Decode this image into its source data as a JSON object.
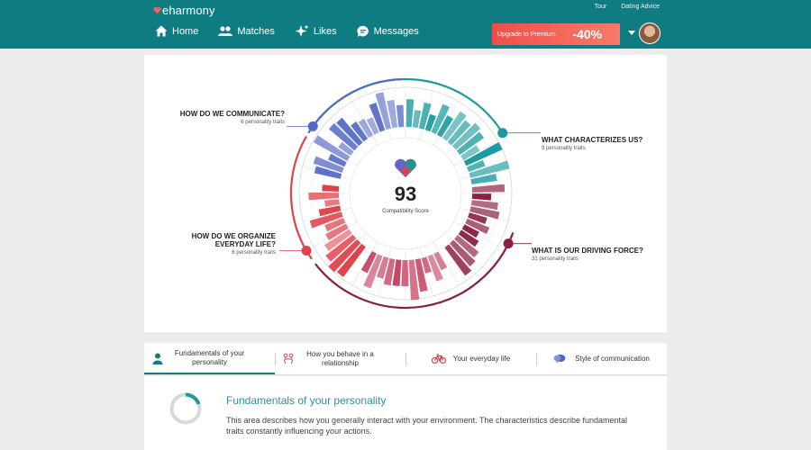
{
  "brand": {
    "logo_text": "eharmony"
  },
  "util_links": [
    "Tour",
    "Dating Advice"
  ],
  "nav": [
    {
      "label": "Home",
      "icon": "home-icon"
    },
    {
      "label": "Matches",
      "icon": "people-icon"
    },
    {
      "label": "Likes",
      "icon": "sparkle-icon"
    },
    {
      "label": "Messages",
      "icon": "chat-icon"
    }
  ],
  "upgrade": {
    "label": "Upgrade to Premium",
    "discount": "-40%"
  },
  "compatibility": {
    "score": "93",
    "score_label": "Compatibility Score",
    "sections": [
      {
        "title": "HOW DO WE COMMUNICATE?",
        "traits": "6 personality traits",
        "color": "#5569c6"
      },
      {
        "title": "WHAT CHARACTERIZES US?",
        "traits": "9 personality traits",
        "color": "#1a9aa0"
      },
      {
        "title": "WHAT IS OUR DRIVING FORCE?",
        "traits": "31 personality traits",
        "color": "#8b1f3f"
      },
      {
        "title_line1": "HOW DO WE ORGANIZE",
        "title_line2": "EVERYDAY LIFE?",
        "traits": "6 personality traits",
        "color": "#e0414a"
      }
    ]
  },
  "tabs": [
    {
      "line1": "Fundamentals of your",
      "line2": "personality",
      "icon": "person-icon",
      "active": true
    },
    {
      "line1": "How you behave in a",
      "line2": "relationship",
      "icon": "couple-icon",
      "active": false
    },
    {
      "line1": "Your everyday life",
      "line2": "",
      "icon": "bicycle-icon",
      "active": false
    },
    {
      "line1": "Style of communication",
      "line2": "",
      "icon": "speech-bubbles-icon",
      "active": false
    }
  ],
  "detail": {
    "title": "Fundamentals of your personality",
    "description": "This area describes how you generally interact with your environment. The characteristics describe fundamental traits constantly influencing your actions."
  },
  "colors": {
    "teal": "#0f7c82",
    "accent_red": "#ef4f4a"
  }
}
